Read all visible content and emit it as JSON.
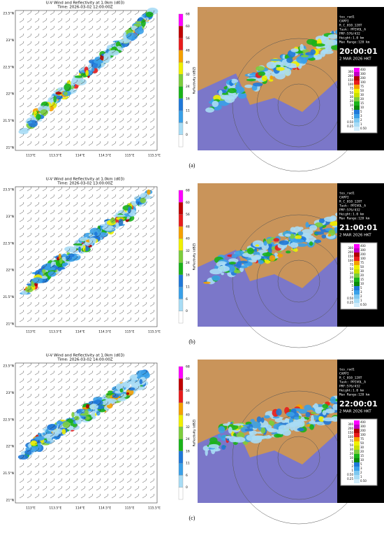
{
  "model_title": "U-V Wind and Reflectivity at 1.0km (d03)",
  "lat_ticks": [
    "23.5°N",
    "23°N",
    "22.5°N",
    "22°N",
    "21.5°N",
    "21°N"
  ],
  "lon_ticks": [
    "113°E",
    "113.5°E",
    "114°E",
    "114.5°E",
    "115°E",
    "115.5°E"
  ],
  "colorbar": {
    "label": "Reflectivity (dBZ)",
    "ticks": [
      "68",
      "60",
      "56",
      "48",
      "40",
      "32",
      "24",
      "16",
      "11",
      "6",
      "0"
    ]
  },
  "radar_info": [
    "tes_rad1",
    "CAPPI",
    "R_C_010_128T",
    "Task: PPIVOL_A",
    "PRF:576/432",
    "Height:1.0 km",
    "Max Range:128 km"
  ],
  "radar_date": "2 MAR 2026 HKT",
  "legend_left": [
    "300",
    "200",
    "150",
    "100",
    "75",
    "50",
    "30",
    "20",
    "10",
    "5",
    "2",
    "1",
    "0.50",
    "0.25"
  ],
  "legend_right": [
    "400",
    "300",
    "200",
    "100",
    "75",
    "50",
    "30",
    "20",
    "15",
    "10",
    "5",
    "3",
    "2",
    "1",
    "0.50"
  ],
  "panels": [
    {
      "caption": "(a)",
      "model_time": "Time: 2026-03-02 12:00:00Z",
      "radar_time": "20:00:01"
    },
    {
      "caption": "(b)",
      "model_time": "Time: 2026-03-02 13:00:00Z",
      "radar_time": "21:00:01"
    },
    {
      "caption": "(c)",
      "model_time": "Time: 2026-03-02 14:00:00Z",
      "radar_time": "22:00:01"
    }
  ]
}
